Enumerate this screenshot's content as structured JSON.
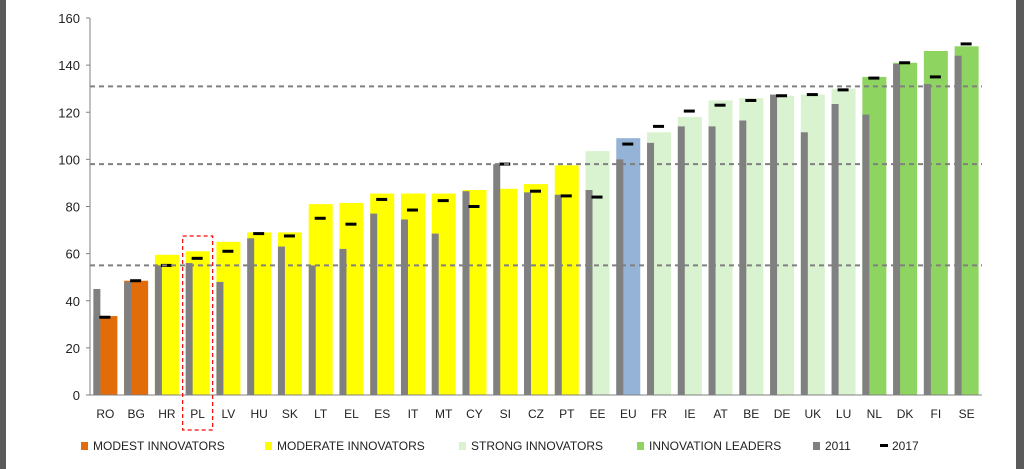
{
  "chart_data": {
    "type": "bar",
    "title": "",
    "xlabel": "",
    "ylabel": "",
    "ylim": [
      0,
      160
    ],
    "yticks": [
      0,
      20,
      40,
      60,
      80,
      100,
      120,
      140,
      160
    ],
    "grid": false,
    "reference_lines": [
      55,
      98,
      131
    ],
    "highlighted_category": "PL",
    "categories": [
      "RO",
      "BG",
      "HR",
      "PL",
      "LV",
      "HU",
      "SK",
      "LT",
      "EL",
      "ES",
      "IT",
      "MT",
      "CY",
      "SI",
      "CZ",
      "PT",
      "EE",
      "EU",
      "FR",
      "IE",
      "AT",
      "BE",
      "DE",
      "UK",
      "LU",
      "NL",
      "DK",
      "FI",
      "SE"
    ],
    "groups": [
      "modest",
      "modest",
      "moderate",
      "moderate",
      "moderate",
      "moderate",
      "moderate",
      "moderate",
      "moderate",
      "moderate",
      "moderate",
      "moderate",
      "moderate",
      "moderate",
      "moderate",
      "moderate",
      "strong",
      "eu",
      "strong",
      "strong",
      "strong",
      "strong",
      "strong",
      "strong",
      "strong",
      "leader",
      "leader",
      "leader",
      "leader"
    ],
    "series": [
      {
        "name": "2017",
        "values": [
          33.5,
          48.5,
          59.5,
          61,
          65,
          69,
          69,
          81,
          81.5,
          85.5,
          85.5,
          85.5,
          87,
          87.5,
          89.5,
          97.5,
          103.5,
          109,
          111.5,
          118,
          125,
          126,
          127,
          127.5,
          130,
          135,
          141,
          146,
          148
        ]
      },
      {
        "name": "2011",
        "values": [
          45,
          48,
          55,
          56,
          48,
          66.5,
          63,
          55,
          62,
          77,
          74.5,
          68.5,
          86.5,
          98,
          86,
          85,
          87,
          100,
          107,
          114,
          114,
          116.5,
          127.5,
          111.5,
          123.5,
          119,
          140.5,
          132,
          144
        ]
      },
      {
        "name": "2017",
        "values": [
          33,
          48.5,
          55,
          58,
          61,
          68.5,
          67.5,
          75,
          72.5,
          83,
          78.5,
          82.5,
          80,
          98,
          86.5,
          84.5,
          84,
          106.5,
          114,
          120.5,
          123,
          125,
          127,
          127.5,
          129.5,
          134.5,
          141,
          135,
          149
        ]
      }
    ],
    "legend": {
      "placement": "bottom",
      "items": [
        {
          "label": "MODEST INNOVATORS",
          "color": "#E36C0A",
          "kind": "square"
        },
        {
          "label": "MODERATE INNOVATORS",
          "color": "#FFFF00",
          "kind": "square"
        },
        {
          "label": "STRONG INNOVATORS",
          "color": "#D9F2D0",
          "kind": "square"
        },
        {
          "label": "INNOVATION LEADERS",
          "color": "#8ED460",
          "kind": "square"
        },
        {
          "label": "2011",
          "color": "#808080",
          "kind": "square"
        },
        {
          "label": "2017",
          "color": "#000000",
          "kind": "dash"
        }
      ]
    },
    "colors": {
      "modest": "#E36C0A",
      "moderate": "#FFFF00",
      "strong": "#D9F2D0",
      "leader": "#8ED460",
      "eu": "#95B3D7",
      "bar2011": "#808080",
      "marker2017": "#000000",
      "reference": "#808080",
      "highlight": "#FF0000"
    }
  }
}
